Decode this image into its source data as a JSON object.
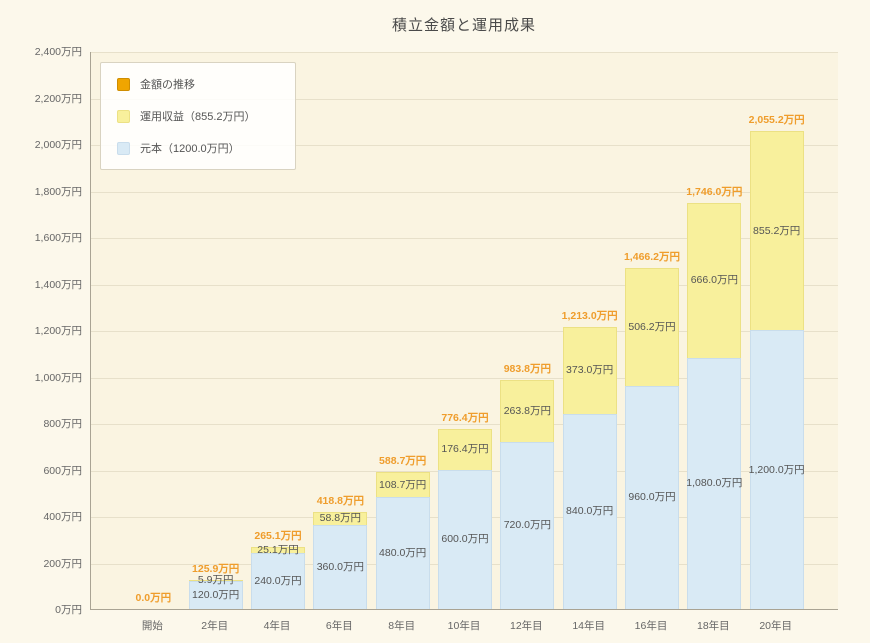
{
  "chart_data": {
    "type": "bar",
    "stacked": true,
    "title": "積立金額と運用成果",
    "grid": true,
    "legend_position": "upper-left",
    "ylim": [
      0,
      2400
    ],
    "y_ticks": [
      "0万円",
      "200万円",
      "400万円",
      "600万円",
      "800万円",
      "1,000万円",
      "1,200万円",
      "1,400万円",
      "1,600万円",
      "1,800万円",
      "2,000万円",
      "2,200万円",
      "2,400万円"
    ],
    "categories": [
      "開始",
      "2年目",
      "4年目",
      "6年目",
      "8年目",
      "10年目",
      "12年目",
      "14年目",
      "16年目",
      "18年目",
      "20年目"
    ],
    "series": [
      {
        "name": "元本（1200.0万円）",
        "color": "#d9eaf5",
        "border": "#c9ddec",
        "values": [
          0,
          120.0,
          240.0,
          360.0,
          480.0,
          600.0,
          720.0,
          840.0,
          960.0,
          1080.0,
          1200.0
        ],
        "labels": [
          "",
          "120.0万円",
          "240.0万円",
          "360.0万円",
          "480.0万円",
          "600.0万円",
          "720.0万円",
          "840.0万円",
          "960.0万円",
          "1,080.0万円",
          "1,200.0万円"
        ]
      },
      {
        "name": "運用収益（855.2万円）",
        "color": "#f8f09c",
        "border": "#ece184",
        "values": [
          0,
          5.9,
          25.1,
          58.8,
          108.7,
          176.4,
          263.8,
          373.0,
          506.2,
          666.0,
          855.2
        ],
        "labels": [
          "",
          "5.9万円",
          "25.1万円",
          "58.8万円",
          "108.7万円",
          "176.4万円",
          "263.8万円",
          "373.0万円",
          "506.2万円",
          "666.0万円",
          "855.2万円"
        ]
      }
    ],
    "totals": [
      0.0,
      125.9,
      265.1,
      418.8,
      588.7,
      776.4,
      983.8,
      1213.0,
      1466.2,
      1746.0,
      2055.2
    ],
    "totals_labels": [
      "0.0万円",
      "125.9万円",
      "265.1万円",
      "418.8万円",
      "588.7万円",
      "776.4万円",
      "983.8万円",
      "1,213.0万円",
      "1,466.2万円",
      "1,746.0万円",
      "2,055.2万円"
    ],
    "total_label_color": "#ef9d2c",
    "segment_label_color": "#555555",
    "legend": [
      {
        "label": "金額の推移",
        "color": "#f0a500",
        "border": "#cf8d00"
      },
      {
        "label": "運用収益（855.2万円）",
        "color": "#f8f09c",
        "border": "#ece184"
      },
      {
        "label": "元本（1200.0万円）",
        "color": "#d9eaf5",
        "border": "#c9ddec"
      }
    ]
  }
}
